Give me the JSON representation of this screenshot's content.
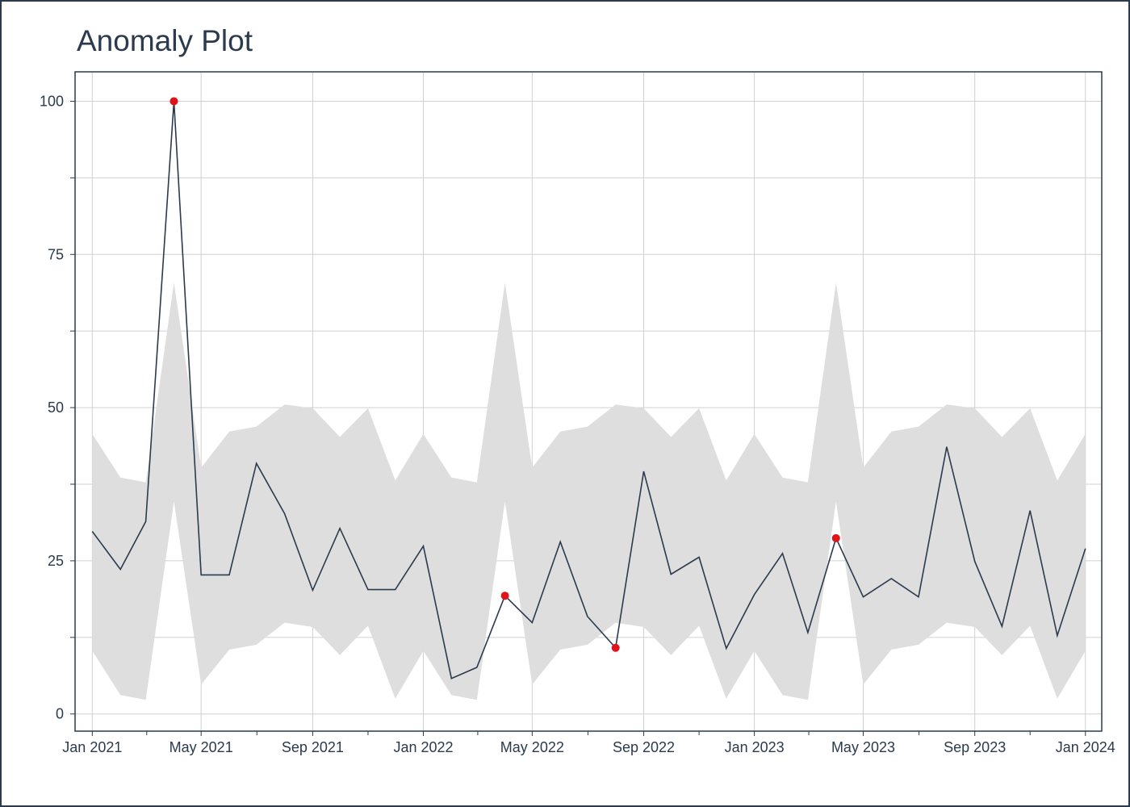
{
  "chart_data": {
    "type": "line",
    "title": "Anomaly Plot",
    "xlabel": "",
    "ylabel": "",
    "x_range": [
      "2020-12-13",
      "2024-01-19"
    ],
    "ylim": [
      -2.8,
      104.8
    ],
    "grid": true,
    "legend": "none",
    "colors": {
      "line": "#2b3a4d",
      "band": "#dedede",
      "anomaly": "#e0131b",
      "grid": "#d0d0d0",
      "axis": "#2b3a4d"
    },
    "x_ticks": [
      "2021-01-01",
      "2021-05-01",
      "2021-09-01",
      "2022-01-01",
      "2022-05-01",
      "2022-09-01",
      "2023-01-01",
      "2023-05-01",
      "2023-09-01",
      "2024-01-01"
    ],
    "x_tick_labels": [
      "Jan 2021",
      "May 2021",
      "Sep 2021",
      "Jan 2022",
      "May 2022",
      "Sep 2022",
      "Jan 2023",
      "May 2023",
      "Sep 2023",
      "Jan 2024"
    ],
    "y_ticks": [
      0,
      25,
      50,
      75,
      100
    ],
    "y_tick_labels": [
      "0",
      "25",
      "50",
      "75",
      "100"
    ],
    "x": [
      "2021-01-01",
      "2021-02-01",
      "2021-03-01",
      "2021-04-01",
      "2021-05-01",
      "2021-06-01",
      "2021-07-01",
      "2021-08-01",
      "2021-09-01",
      "2021-10-01",
      "2021-11-01",
      "2021-12-01",
      "2022-01-01",
      "2022-02-01",
      "2022-03-01",
      "2022-04-01",
      "2022-05-01",
      "2022-06-01",
      "2022-07-01",
      "2022-08-01",
      "2022-09-01",
      "2022-10-01",
      "2022-11-01",
      "2022-12-01",
      "2023-01-01",
      "2023-02-01",
      "2023-03-01",
      "2023-04-01",
      "2023-05-01",
      "2023-06-01",
      "2023-07-01",
      "2023-08-01",
      "2023-09-01",
      "2023-10-01",
      "2023-11-01",
      "2023-12-01",
      "2024-01-01"
    ],
    "series": [
      {
        "values": [
          29.8,
          23.6,
          31.4,
          100,
          22.7,
          22.7,
          40.9,
          32.7,
          20.2,
          30.3,
          20.3,
          20.3,
          27.4,
          5.8,
          7.6,
          19.3,
          14.9,
          28.1,
          15.9,
          10.8,
          39.6,
          22.8,
          25.6,
          10.7,
          19.5,
          26.2,
          13.3,
          28.7,
          19.1,
          22.1,
          19.1,
          43.6,
          24.9,
          14.3,
          33.2,
          12.8,
          27.0
        ]
      }
    ],
    "band_upper": [
      45.7,
      38.6,
      37.8,
      70.4,
      40.2,
      46.1,
      46.9,
      50.5,
      49.9,
      45.2,
      49.9,
      38.1,
      45.7,
      38.6,
      37.8,
      70.4,
      40.2,
      46.1,
      46.9,
      50.5,
      49.9,
      45.2,
      49.9,
      38.1,
      45.7,
      38.6,
      37.8,
      70.4,
      40.2,
      46.1,
      46.9,
      50.5,
      49.9,
      45.2,
      49.9,
      38.1,
      45.7
    ],
    "band_lower": [
      10.3,
      3.1,
      2.3,
      34.7,
      4.8,
      10.5,
      11.3,
      14.9,
      14.2,
      9.6,
      14.4,
      2.5,
      10.3,
      3.1,
      2.3,
      34.7,
      4.8,
      10.5,
      11.3,
      14.9,
      14.2,
      9.6,
      14.4,
      2.5,
      10.3,
      3.1,
      2.3,
      34.7,
      4.8,
      10.5,
      11.3,
      14.9,
      14.2,
      9.6,
      14.4,
      2.5,
      10.3
    ],
    "anomalies": [
      {
        "x": "2021-04-01",
        "y": 100
      },
      {
        "x": "2022-04-01",
        "y": 19.3
      },
      {
        "x": "2022-08-01",
        "y": 10.8
      },
      {
        "x": "2023-04-01",
        "y": 28.7
      }
    ]
  }
}
